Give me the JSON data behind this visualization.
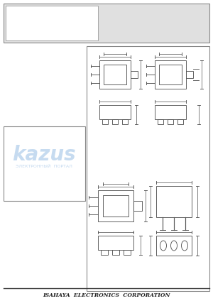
{
  "bg_color": "#e8e8e8",
  "page_bg": "#ffffff",
  "border_color": "#888888",
  "line_color": "#555555",
  "dark_line": "#333333",
  "footer_text": "ISAHAYA  ELECTRONICS  CORPORATION",
  "watermark_text": "kazus",
  "watermark_subtext": "ЭЛЕКТРОННЫЙ  ПОРТАЛ",
  "watermark_color": "#a8c8e8",
  "top_box_color": "#e0e0e0",
  "diagram_bg": "#f8f8f8"
}
